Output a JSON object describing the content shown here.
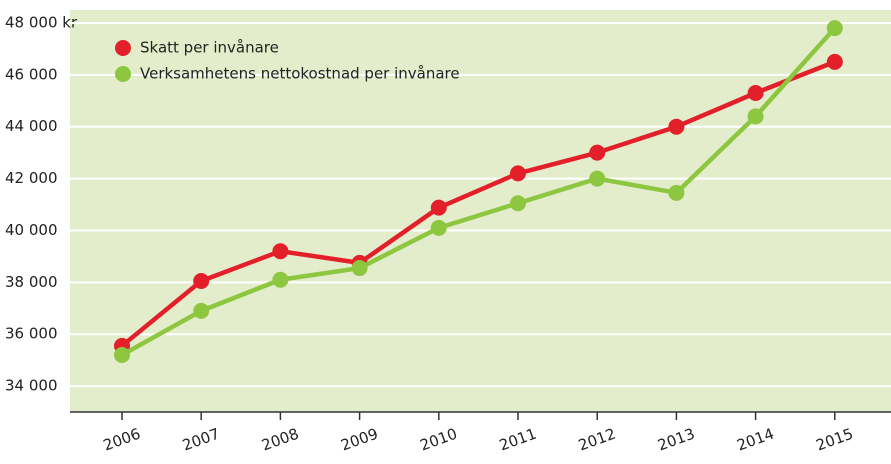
{
  "chart_data": {
    "type": "line",
    "categories": [
      "2006",
      "2007",
      "2008",
      "2009",
      "2010",
      "2011",
      "2012",
      "2013",
      "2014",
      "2015"
    ],
    "series": [
      {
        "name": "Skatt per invånare",
        "color": "#e3202a",
        "values": [
          35550,
          38050,
          39200,
          38750,
          40880,
          42200,
          43000,
          44000,
          45300,
          46500
        ]
      },
      {
        "name": "Verksamhetens nettokostnad per invånare",
        "color": "#8dc63f",
        "values": [
          35200,
          36900,
          38100,
          38550,
          40100,
          41050,
          42000,
          41450,
          44400,
          47800
        ]
      }
    ],
    "ylim": [
      33000,
      48500
    ],
    "yticks": [
      {
        "value": 34000,
        "label": "34 000"
      },
      {
        "value": 36000,
        "label": "36 000"
      },
      {
        "value": 38000,
        "label": "38 000"
      },
      {
        "value": 40000,
        "label": "40 000"
      },
      {
        "value": 42000,
        "label": "42 000"
      },
      {
        "value": 44000,
        "label": "44 000"
      },
      {
        "value": 46000,
        "label": "46 000"
      },
      {
        "value": 48000,
        "label": "48 000 kr"
      }
    ],
    "grid": true,
    "legend": "upper left"
  }
}
